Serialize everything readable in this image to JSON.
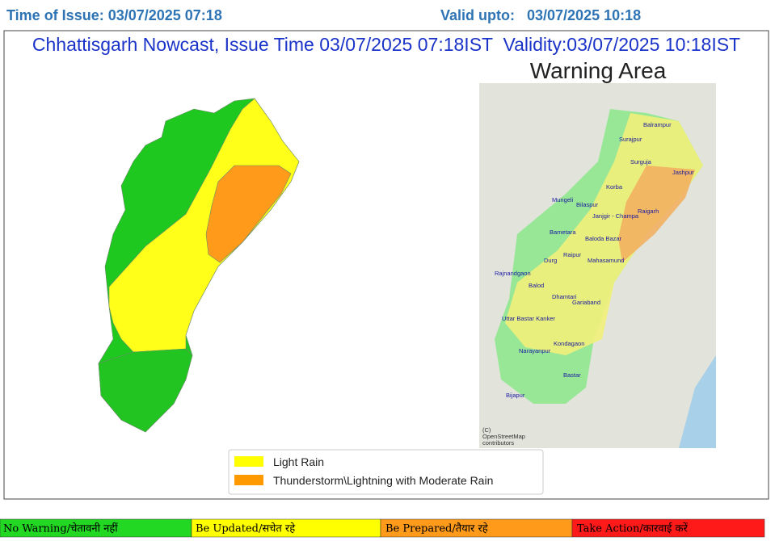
{
  "header": {
    "issue_time": "Time of Issue: 03/07/2025 07:18",
    "valid_upto": "Valid upto:   03/07/2025 10:18"
  },
  "title": "Chhattisgarh Nowcast, Issue Time 03/07/2025 07:18IST  Validity:03/07/2025 10:18IST",
  "warning_area_title": "Warning Area",
  "districts": [
    "Balrampur",
    "Surajpur",
    "Surguja",
    "Jashpur",
    "Korba",
    "Mungeli",
    "Bilaspur",
    "Janjgir - Champa",
    "Raigarh",
    "Bametara",
    "Baloda Bazar",
    "Raipur",
    "Durg",
    "Mahasamund",
    "Rajnandgaon",
    "Balod",
    "Dhamtari",
    "Gariaband",
    "Uttar Bastar Kanker",
    "Kondagaon",
    "Narayanpur",
    "Bastar",
    "Bijapur"
  ],
  "attribution": [
    "(C)",
    "OpenStreetMap",
    "contributors"
  ],
  "legend": [
    {
      "label": "Light Rain"
    },
    {
      "label": "Thunderstorm\\Lightning with Moderate Rain"
    }
  ],
  "scale": [
    "No Warning/चेतावनी नहीं",
    "Be Updated/सचेत रहे",
    "Be Prepared/तैयार रहे",
    "Take Action/कारवाई करें"
  ]
}
